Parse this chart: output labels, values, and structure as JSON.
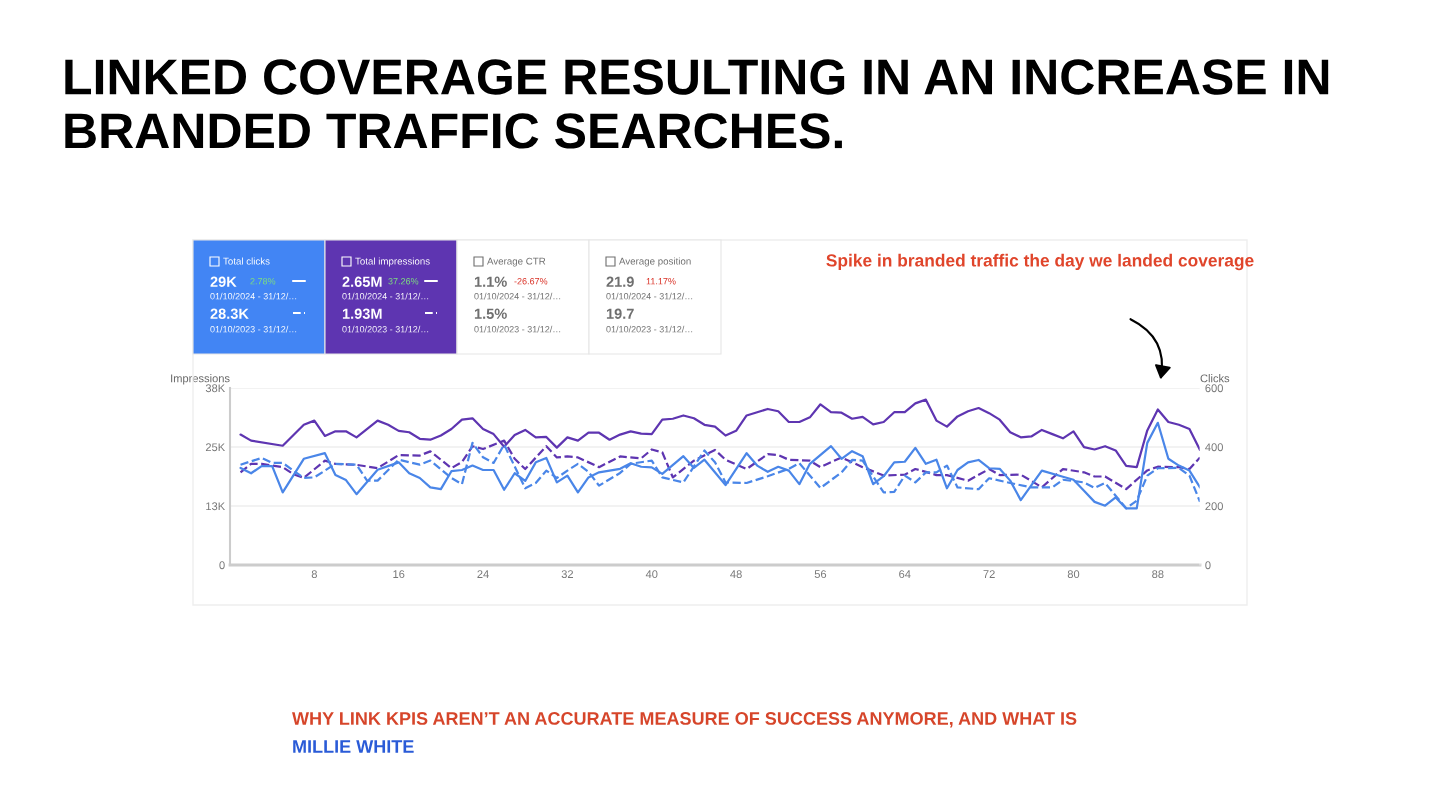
{
  "chart_data": {
    "type": "line",
    "title": "LINKED COVERAGE RESULTING IN AN INCREASE IN BRANDED TRAFFIC SEARCHES.",
    "ylabel": "Impressions",
    "y2label": "Clicks",
    "xlim": [
      0,
      92
    ],
    "xticks": [
      8,
      16,
      24,
      32,
      40,
      48,
      56,
      64,
      72,
      80,
      88
    ],
    "ylim": [
      0,
      38000
    ],
    "yticks": [
      0,
      {
        "value": 12667,
        "label": "13K"
      },
      {
        "value": 25333,
        "label": "25K"
      },
      {
        "value": 38000,
        "label": "38K"
      }
    ],
    "y2lim": [
      0,
      600
    ],
    "y2ticks": [
      0,
      200,
      400,
      600
    ],
    "grid": "y",
    "marker": "none",
    "series": [
      {
        "color": "#5e35b1",
        "line_style": "solid",
        "x": [
          1,
          2,
          5,
          7,
          8,
          9,
          10,
          11,
          12,
          14,
          15,
          16,
          17,
          18,
          19,
          20,
          21,
          22,
          23,
          24,
          25,
          26,
          27,
          28,
          29,
          30,
          31,
          32,
          33,
          34,
          35,
          36,
          37,
          38,
          39,
          40,
          41,
          42,
          43,
          44,
          45,
          46,
          47,
          48,
          49,
          50,
          51,
          52,
          53,
          54,
          55,
          56,
          57,
          58,
          59,
          60,
          61,
          62,
          63,
          64,
          65,
          66,
          67,
          68,
          69,
          70,
          71,
          72,
          73,
          74,
          75,
          76,
          77,
          78,
          79,
          80,
          81,
          82,
          83,
          84,
          85,
          86,
          87,
          88,
          89,
          90,
          91,
          92
        ],
        "values": [
          28000,
          26700,
          25600,
          30100,
          31000,
          27700,
          28700,
          28700,
          27400,
          31000,
          30100,
          28800,
          28500,
          27100,
          26900,
          27800,
          29200,
          31200,
          31500,
          29200,
          28100,
          25400,
          27900,
          29000,
          27400,
          27500,
          25200,
          27400,
          26700,
          28400,
          28400,
          26900,
          28000,
          28700,
          28200,
          28100,
          31200,
          31400,
          32100,
          31500,
          30100,
          29700,
          27800,
          28800,
          32100,
          32800,
          33500,
          33000,
          30700,
          30700,
          31700,
          34500,
          32800,
          32700,
          31400,
          31800,
          30200,
          30700,
          32800,
          32800,
          34700,
          35500,
          31000,
          29700,
          31900,
          33000,
          33700,
          32600,
          31200,
          28500,
          27400,
          27600,
          29000,
          28100,
          27200,
          28700,
          25300,
          24800,
          25500,
          24600,
          21300,
          21000,
          28900,
          33400,
          30700,
          30100,
          29200,
          24700
        ]
      },
      {
        "color": "#5e35b1",
        "line_style": "dashed",
        "x": [
          1,
          2,
          3,
          5,
          6,
          7,
          9,
          10,
          12,
          14,
          16,
          18,
          19,
          21,
          22,
          23,
          24,
          26,
          27,
          28,
          30,
          31,
          32,
          33,
          35,
          37,
          39,
          40,
          41,
          42,
          44,
          46,
          47,
          49,
          51,
          52,
          53,
          55,
          56,
          58,
          60,
          62,
          64,
          65,
          66,
          67,
          68,
          70,
          72,
          73,
          75,
          77,
          79,
          81,
          82,
          83,
          85,
          87,
          88,
          90,
          91,
          92
        ],
        "values": [
          19900,
          21700,
          21700,
          21000,
          19500,
          18700,
          22400,
          21700,
          21500,
          20800,
          23600,
          23500,
          24400,
          20800,
          22100,
          25500,
          24900,
          26700,
          22800,
          20600,
          25500,
          23100,
          23300,
          23100,
          21000,
          23300,
          22900,
          24800,
          24200,
          18800,
          22400,
          24700,
          22600,
          20600,
          23800,
          23600,
          22600,
          22400,
          21000,
          23100,
          21000,
          19200,
          19400,
          20600,
          20000,
          19300,
          19300,
          18100,
          20600,
          19300,
          19400,
          16700,
          20600,
          19900,
          19000,
          19000,
          16300,
          20300,
          21100,
          21000,
          20600,
          23100
        ]
      },
      {
        "color": "#4a86e8",
        "line_style": "solid",
        "axis": "y2",
        "x": [
          1,
          2,
          3,
          4,
          5,
          7,
          9,
          10,
          11,
          12,
          14,
          16,
          17,
          18,
          19,
          20,
          21,
          22,
          23,
          24,
          25,
          26,
          27,
          28,
          29,
          30,
          31,
          32,
          33,
          34,
          35,
          37,
          38,
          39,
          40,
          41,
          43,
          44,
          45,
          47,
          49,
          50,
          51,
          52,
          53,
          54,
          55,
          57,
          58,
          59,
          60,
          61,
          62,
          63,
          64,
          65,
          66,
          67,
          68,
          69,
          70,
          71,
          72,
          73,
          74,
          75,
          77,
          79,
          80,
          81,
          82,
          83,
          84,
          85,
          86,
          87,
          88,
          89,
          90,
          91,
          92
        ],
        "values": [
          329,
          311,
          335,
          335,
          246,
          360,
          379,
          305,
          288,
          240,
          323,
          348,
          311,
          295,
          263,
          257,
          318,
          322,
          337,
          322,
          322,
          255,
          311,
          285,
          348,
          363,
          280,
          303,
          246,
          297,
          314,
          326,
          345,
          333,
          331,
          309,
          369,
          329,
          357,
          271,
          379,
          337,
          316,
          333,
          320,
          274,
          343,
          403,
          360,
          386,
          369,
          274,
          301,
          348,
          350,
          397,
          343,
          357,
          260,
          322,
          348,
          356,
          328,
          326,
          286,
          220,
          320,
          299,
          289,
          252,
          214,
          201,
          229,
          192,
          192,
          414,
          482,
          360,
          337,
          320,
          263
        ]
      },
      {
        "color": "#4a86e8",
        "line_style": "dashed",
        "axis": "y2",
        "x": [
          1,
          3,
          4,
          5,
          7,
          8,
          10,
          12,
          13,
          14,
          16,
          18,
          19,
          21,
          22,
          23,
          24,
          25,
          26,
          28,
          29,
          30,
          31,
          32,
          33,
          34,
          35,
          37,
          38,
          40,
          41,
          43,
          45,
          46,
          47,
          49,
          51,
          53,
          54,
          56,
          58,
          59,
          60,
          62,
          63,
          64,
          65,
          66,
          67,
          68,
          69,
          71,
          72,
          74,
          76,
          78,
          79,
          81,
          82,
          83,
          84,
          85,
          86,
          87,
          88,
          90,
          91,
          92
        ],
        "values": [
          340,
          363,
          346,
          346,
          295,
          297,
          343,
          340,
          286,
          286,
          357,
          340,
          354,
          295,
          274,
          414,
          365,
          346,
          408,
          260,
          278,
          320,
          295,
          320,
          343,
          316,
          269,
          312,
          343,
          354,
          297,
          280,
          388,
          348,
          280,
          278,
          301,
          326,
          345,
          261,
          314,
          356,
          354,
          246,
          248,
          303,
          280,
          314,
          314,
          337,
          263,
          257,
          294,
          278,
          263,
          263,
          289,
          280,
          261,
          278,
          235,
          192,
          218,
          303,
          328,
          329,
          303,
          214
        ]
      }
    ],
    "annotations": [
      "Total clicks",
      "29K",
      "2.78%",
      "01/10/2024 - 31/12/…",
      "28.3K",
      "01/10/2023 - 31/12/…",
      "Total impressions",
      "2.65M",
      "37.26%",
      "01/10/2024 - 31/12/…",
      "1.93M",
      "01/10/2023 - 31/12/…",
      "Average CTR",
      "1.1%",
      "-26.67%",
      "01/10/2024 - 31/12/…",
      "1.5%",
      "01/10/2023 - 31/12/…",
      "Average position",
      "21.9",
      "11.17%",
      "01/10/2024 - 31/12/…",
      "19.7",
      "01/10/2023 - 31/12/…",
      "Spike in branded traffic the day we landed coverage",
      "WHY LINK KPIS AREN’T AN ACCURATE MEASURE OF SUCCESS ANYMORE, AND WHAT IS",
      "MILLIE WHITE"
    ]
  }
}
